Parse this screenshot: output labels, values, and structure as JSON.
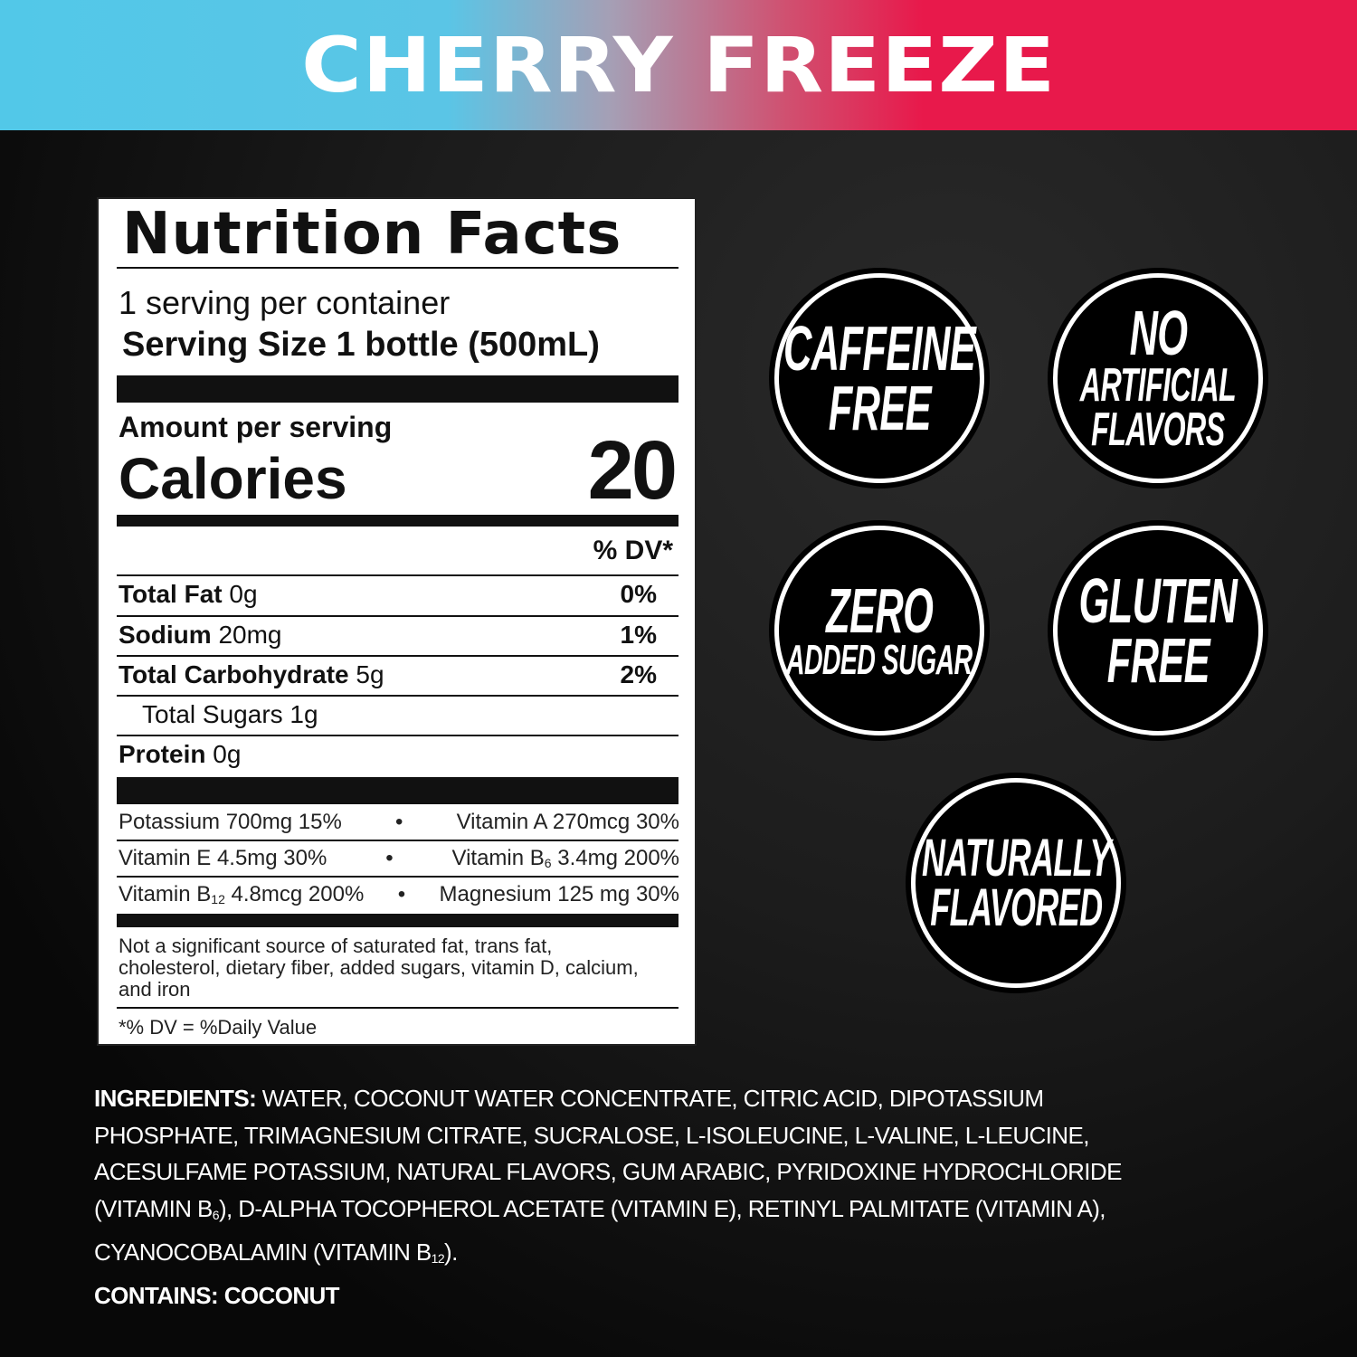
{
  "header": {
    "title": "CHERRY FREEZE",
    "gradient": [
      "#52c8e8",
      "#e8194b"
    ]
  },
  "label": {
    "title": "Nutrition Facts",
    "servings": "1 serving per container",
    "serving_size": "Serving Size 1 bottle (500mL)",
    "amount_per_serving": "Amount per serving",
    "calories_label": "Calories",
    "calories_value": "20",
    "dv_header": "% DV*",
    "nutrients": [
      {
        "name": "Total Fat",
        "amount": "0g",
        "dv": "0%"
      },
      {
        "name": "Sodium",
        "amount": "20mg",
        "dv": "1%"
      },
      {
        "name": "Total Carbohydrate",
        "amount": "5g",
        "dv": "2%"
      },
      {
        "name": "Total Sugars",
        "amount": "1g",
        "dv": ""
      },
      {
        "name": "Protein",
        "amount": "0g",
        "dv": ""
      }
    ],
    "vitamins": [
      {
        "left": "Potassium 700mg 15%",
        "right_pre": "Vitamin A 270mcg 30%",
        "right_sub": "",
        "right_post": ""
      },
      {
        "left": "Vitamin E 4.5mg 30%",
        "right_pre": "Vitamin B",
        "right_sub": "6",
        "right_post": " 3.4mg 200%"
      },
      {
        "left_pre": "Vitamin B",
        "left_sub": "12",
        "left_post": " 4.8mcg 200%",
        "right_pre": "Magnesium 125 mg 30%"
      }
    ],
    "bullet": "•",
    "footnote": "Not a significant source of saturated fat, trans fat, cholesterol, dietary fiber, added sugars, vitamin D, calcium, and iron",
    "dv_note": "*% DV = %Daily Value"
  },
  "badges": [
    {
      "lines": [
        "CAFFEINE",
        "FREE"
      ]
    },
    {
      "lines": [
        "NO",
        "ARTIFICIAL",
        "FLAVORS"
      ]
    },
    {
      "lines": [
        "ZERO",
        "ADDED SUGAR"
      ]
    },
    {
      "lines": [
        "GLUTEN",
        "FREE"
      ]
    },
    {
      "lines": [
        "NATURALLY",
        "FLAVORED"
      ]
    }
  ],
  "ingredients": {
    "label": "INGREDIENTS:",
    "lines": [
      " WATER, COCONUT WATER CONCENTRATE, CITRIC ACID, DIPOTASSIUM",
      "PHOSPHATE, TRIMAGNESIUM CITRATE, SUCRALOSE, L-ISOLEUCINE, L-VALINE, L-LEUCINE,",
      "ACESULFAME POTASSIUM, NATURAL FLAVORS, GUM ARABIC, PYRIDOXINE HYDROCHLORIDE",
      "(VITAMIN B",
      "6",
      "), D-ALPHA TOCOPHEROL ACETATE (VITAMIN E), RETINYL PALMITATE (VITAMIN A),",
      "CYANOCOBALAMIN (VITAMIN B",
      "12",
      ")."
    ],
    "contains": "CONTAINS: COCONUT"
  }
}
